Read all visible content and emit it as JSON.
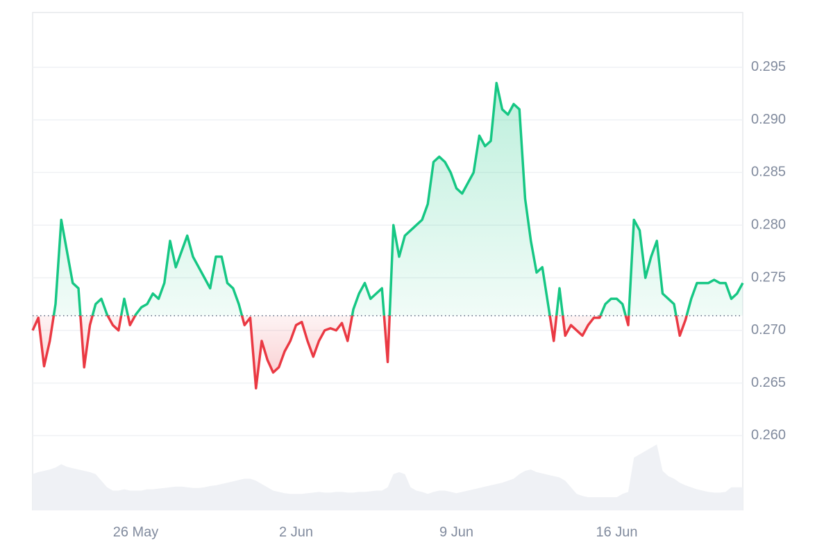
{
  "chart_data": {
    "type": "price-line",
    "categories": [
      null,
      null,
      null,
      null,
      null,
      null,
      null,
      null,
      null,
      null,
      null,
      null,
      null,
      null,
      null,
      null,
      null,
      null,
      "26 May",
      null,
      null,
      null,
      null,
      null,
      null,
      null,
      null,
      null,
      null,
      null,
      null,
      null,
      null,
      null,
      null,
      null,
      null,
      null,
      null,
      null,
      null,
      null,
      null,
      null,
      null,
      null,
      "2 Jun",
      null,
      null,
      null,
      null,
      null,
      null,
      null,
      null,
      null,
      null,
      null,
      null,
      null,
      null,
      null,
      null,
      null,
      null,
      null,
      null,
      null,
      null,
      null,
      null,
      null,
      null,
      null,
      "9 Jun",
      null,
      null,
      null,
      null,
      null,
      null,
      null,
      null,
      null,
      null,
      null,
      null,
      null,
      null,
      null,
      null,
      null,
      null,
      null,
      null,
      null,
      null,
      null,
      null,
      null,
      null,
      null,
      "16 Jun",
      null,
      null,
      null,
      null,
      null,
      null,
      null,
      null,
      null,
      null,
      null,
      null,
      null,
      null,
      null,
      null,
      null,
      null,
      null,
      null,
      null,
      null
    ],
    "series": [
      {
        "color_up": "#16c784",
        "color_down": "#ea3943",
        "values": [
          0.27,
          0.2712,
          0.2666,
          0.269,
          0.2725,
          0.2805,
          0.2775,
          0.2745,
          0.274,
          0.2665,
          0.2705,
          0.2725,
          0.273,
          0.2715,
          0.2705,
          0.27,
          0.273,
          0.2705,
          0.2715,
          0.2722,
          0.2725,
          0.2735,
          0.273,
          0.2745,
          0.2785,
          0.276,
          0.2775,
          0.279,
          0.277,
          0.276,
          0.275,
          0.274,
          0.277,
          0.277,
          0.2745,
          0.274,
          0.2725,
          0.2705,
          0.2712,
          0.2645,
          0.269,
          0.2672,
          0.266,
          0.2665,
          0.268,
          0.269,
          0.2705,
          0.2708,
          0.269,
          0.2675,
          0.269,
          0.27,
          0.2702,
          0.27,
          0.2707,
          0.269,
          0.272,
          0.2735,
          0.2745,
          0.273,
          0.2735,
          0.274,
          0.267,
          0.28,
          0.277,
          0.279,
          0.2795,
          0.28,
          0.2805,
          0.282,
          0.286,
          0.2865,
          0.286,
          0.285,
          0.2835,
          0.283,
          0.284,
          0.285,
          0.2885,
          0.2875,
          0.288,
          0.2935,
          0.291,
          0.2905,
          0.2915,
          0.291,
          0.2825,
          0.2785,
          0.2755,
          0.276,
          0.2725,
          0.269,
          0.274,
          0.2695,
          0.2705,
          0.27,
          0.2695,
          0.2705,
          0.2712,
          0.2712,
          0.2725,
          0.273,
          0.273,
          0.2725,
          0.2705,
          0.2805,
          0.2795,
          0.275,
          0.277,
          0.2785,
          0.2735,
          0.273,
          0.2725,
          0.2695,
          0.271,
          0.273,
          0.2745,
          0.2745,
          0.2745,
          0.2748,
          0.2745,
          0.2745,
          0.273,
          0.2735,
          0.2745
        ]
      },
      {
        "axis": "y2",
        "color": "#eff1f5",
        "values": [
          55,
          58,
          60,
          62,
          65,
          70,
          66,
          64,
          62,
          60,
          58,
          55,
          45,
          35,
          30,
          30,
          32,
          30,
          30,
          30,
          32,
          32,
          33,
          34,
          35,
          36,
          36,
          35,
          34,
          34,
          35,
          37,
          38,
          40,
          42,
          44,
          46,
          48,
          48,
          45,
          40,
          35,
          30,
          28,
          26,
          25,
          25,
          25,
          26,
          27,
          28,
          27,
          27,
          28,
          28,
          27,
          27,
          28,
          28,
          29,
          30,
          30,
          35,
          55,
          58,
          55,
          35,
          30,
          28,
          25,
          28,
          30,
          30,
          28,
          26,
          28,
          30,
          32,
          34,
          36,
          38,
          40,
          42,
          45,
          48,
          55,
          60,
          62,
          58,
          56,
          54,
          52,
          50,
          45,
          35,
          25,
          22,
          20,
          20,
          20,
          20,
          20,
          20,
          25,
          28,
          80,
          85,
          90,
          95,
          100,
          60,
          52,
          48,
          42,
          38,
          35,
          32,
          30,
          28,
          27,
          27,
          28,
          35,
          35,
          35
        ]
      }
    ],
    "baseline": 0.2714,
    "ylim": [
      0.2529,
      0.3002
    ],
    "yticks": [
      {
        "value": 0.26,
        "label": "0.260"
      },
      0.265,
      {
        "value": 0.27,
        "label": "0.270"
      },
      0.275,
      {
        "value": 0.28,
        "label": "0.280"
      },
      0.285,
      {
        "value": 0.29,
        "label": "0.290"
      },
      0.295
    ],
    "y2lim": [
      0,
      100
    ],
    "grid": true
  }
}
